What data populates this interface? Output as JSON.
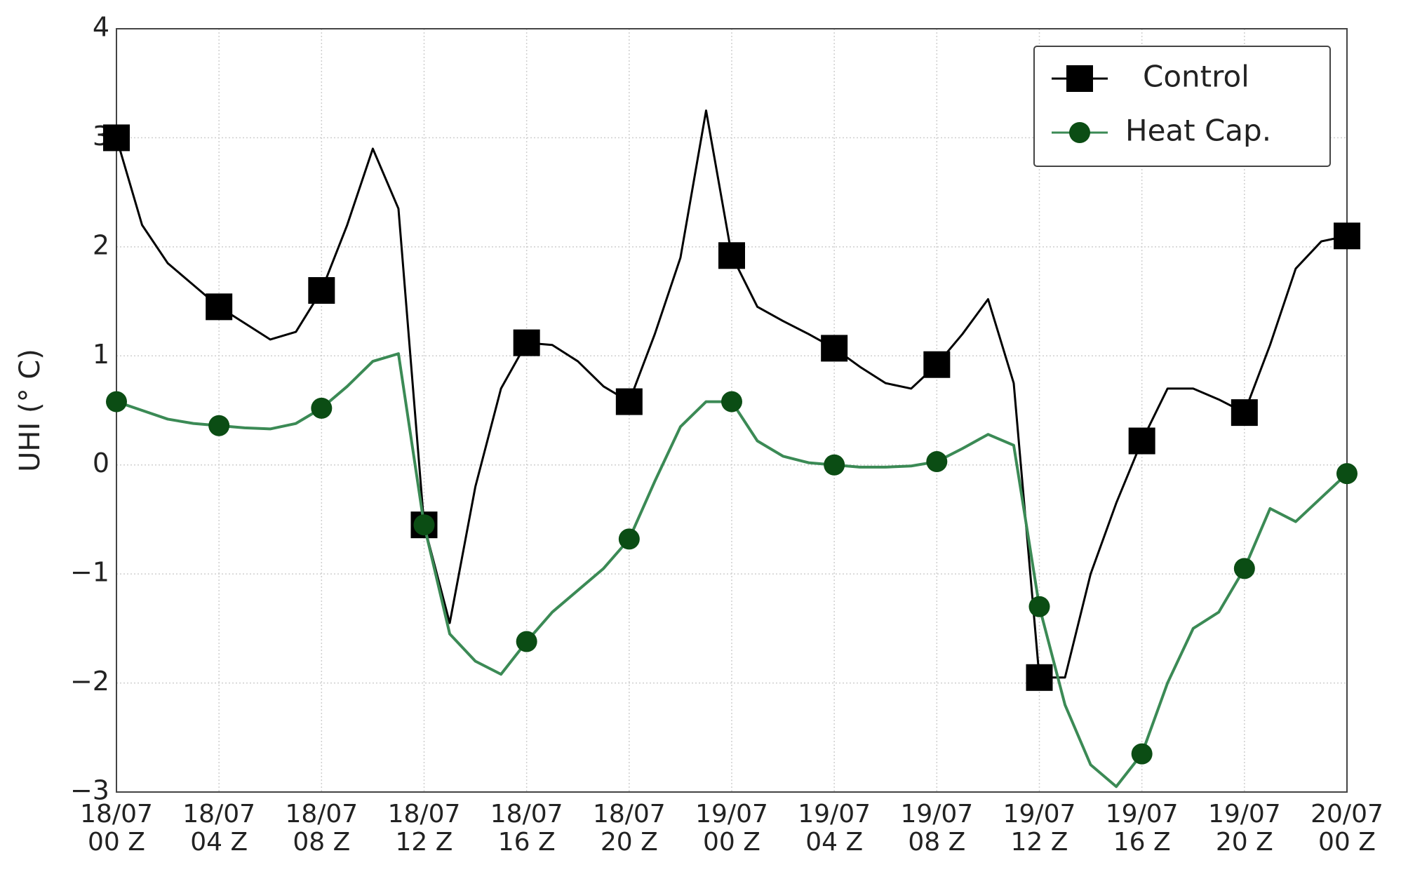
{
  "chart_data": {
    "type": "line",
    "ylabel": "UHI (° C)",
    "categories": [
      "18/07\n00 Z",
      null,
      null,
      null,
      "18/07\n04 Z",
      null,
      null,
      null,
      "18/07\n08 Z",
      null,
      null,
      null,
      "18/07\n12 Z",
      null,
      null,
      null,
      "18/07\n16 Z",
      null,
      null,
      null,
      "18/07\n20 Z",
      null,
      null,
      null,
      "19/07\n00 Z",
      null,
      null,
      null,
      "19/07\n04 Z",
      null,
      null,
      null,
      "19/07\n08 Z",
      null,
      null,
      null,
      "19/07\n12 Z",
      null,
      null,
      null,
      "19/07\n16 Z",
      null,
      null,
      null,
      "19/07\n20 Z",
      null,
      null,
      null,
      "20/07\n00 Z"
    ],
    "series": [
      {
        "name": "Control",
        "color": "#000000",
        "marker": "square",
        "values": [
          3.0,
          2.2,
          1.85,
          1.65,
          1.45,
          1.3,
          1.15,
          1.22,
          1.6,
          2.2,
          2.9,
          2.35,
          -0.55,
          -1.45,
          -0.2,
          0.7,
          1.12,
          1.1,
          0.95,
          0.72,
          0.58,
          1.2,
          1.9,
          3.25,
          1.92,
          1.45,
          1.32,
          1.2,
          1.07,
          0.9,
          0.75,
          0.7,
          0.92,
          1.2,
          1.52,
          0.75,
          -1.95,
          -1.95,
          -1.0,
          -0.35,
          0.22,
          0.7,
          0.7,
          0.6,
          0.48,
          1.1,
          1.8,
          2.05,
          2.1
        ]
      },
      {
        "name": "Heat Cap.",
        "color": "#0b4d14",
        "marker": "circle",
        "values": [
          0.58,
          0.5,
          0.42,
          0.38,
          0.36,
          0.34,
          0.33,
          0.38,
          0.52,
          0.72,
          0.95,
          1.02,
          -0.55,
          -1.55,
          -1.8,
          -1.92,
          -1.62,
          -1.35,
          -1.15,
          -0.95,
          -0.68,
          -0.15,
          0.35,
          0.58,
          0.58,
          0.22,
          0.08,
          0.02,
          0.0,
          -0.02,
          -0.02,
          -0.01,
          0.03,
          0.15,
          0.28,
          0.18,
          -1.3,
          -2.2,
          -2.75,
          -2.95,
          -2.65,
          -2.0,
          -1.5,
          -1.35,
          -0.95,
          -0.4,
          -0.52,
          -0.3,
          -0.08
        ]
      }
    ],
    "ylim": [
      -3,
      4
    ],
    "yticks": [
      {
        "value": -3,
        "label": "−3"
      },
      {
        "value": -2,
        "label": "−2"
      },
      {
        "value": -1,
        "label": "−1"
      },
      0,
      1,
      2,
      3,
      4
    ],
    "grid": true,
    "legend": "upper right"
  }
}
